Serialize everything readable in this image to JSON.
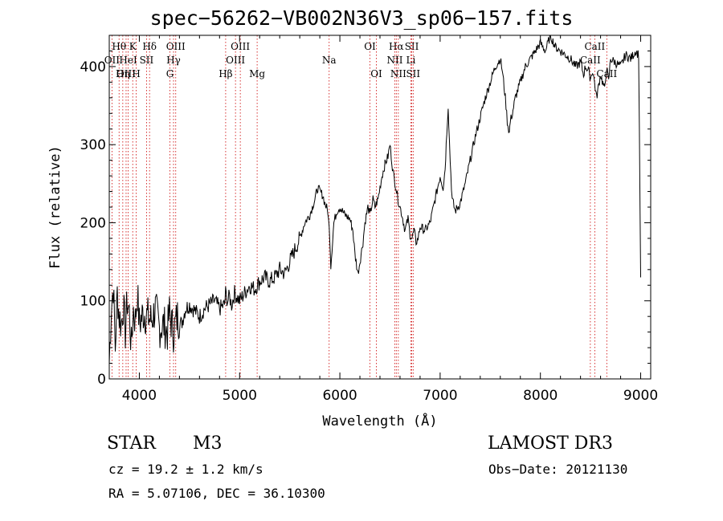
{
  "page": {
    "title": "spec−56262−VB002N36V3_sp06−157.fits",
    "object_class": "STAR",
    "subclass": "M3",
    "survey": "LAMOST DR3",
    "redshift_text": "cz = 19.2 ± 1.2 km/s",
    "obs_date_text": "Obs−Date: 20121130",
    "coords_text": "RA =   5.07106, DEC =  36.10300"
  },
  "chart_data": {
    "type": "line",
    "title": "spec−56262−VB002N36V3_sp06−157.fits",
    "xlabel": "Wavelength (Å)",
    "ylabel": "Flux (relative)",
    "xlim": [
      3700,
      9100
    ],
    "ylim": [
      0,
      440
    ],
    "xticks": [
      4000,
      5000,
      6000,
      7000,
      8000,
      9000
    ],
    "xtick_labels": [
      "4000",
      "5000",
      "6000",
      "7000",
      "8000",
      "9000"
    ],
    "yticks": [
      0,
      100,
      200,
      300,
      400
    ],
    "ytick_labels": [
      "0",
      "100",
      "200",
      "300",
      "400"
    ],
    "grid": false,
    "line_color": "#000000",
    "marker_line_color": "#cc0000",
    "series": [
      {
        "x": [
          3700,
          3720,
          3740,
          3760,
          3780,
          3800,
          3820,
          3840,
          3860,
          3880,
          3900,
          3920,
          3940,
          3960,
          3980,
          4000,
          4040,
          4080,
          4120,
          4160,
          4200,
          4240,
          4280,
          4300,
          4340,
          4380,
          4420,
          4460,
          4500,
          4550,
          4600,
          4650,
          4700,
          4750,
          4800,
          4850,
          4860,
          4880,
          4900,
          4920,
          4950,
          5000,
          5050,
          5100,
          5150,
          5200,
          5250,
          5300,
          5350,
          5400,
          5450,
          5500,
          5550,
          5600,
          5650,
          5700,
          5750,
          5780,
          5800,
          5830,
          5850,
          5880,
          5900,
          5910,
          5940,
          5970,
          6000,
          6050,
          6100,
          6130,
          6150,
          6180,
          6200,
          6230,
          6250,
          6280,
          6300,
          6330,
          6350,
          6380,
          6400,
          6420,
          6450,
          6480,
          6500,
          6530,
          6560,
          6580,
          6600,
          6620,
          6650,
          6680,
          6700,
          6720,
          6740,
          6760,
          6780,
          6800,
          6850,
          6900,
          6950,
          7000,
          7030,
          7050,
          7060,
          7080,
          7100,
          7120,
          7150,
          7200,
          7250,
          7300,
          7350,
          7400,
          7450,
          7500,
          7550,
          7600,
          7620,
          7650,
          7670,
          7690,
          7700,
          7720,
          7750,
          7800,
          7850,
          7900,
          7950,
          8000,
          8050,
          8100,
          8150,
          8200,
          8250,
          8300,
          8350,
          8400,
          8430,
          8450,
          8480,
          8500,
          8520,
          8540,
          8560,
          8600,
          8640,
          8660,
          8680,
          8700,
          8750,
          8800,
          8850,
          8900,
          8950,
          8980,
          9000
        ],
        "y": [
          20,
          90,
          120,
          40,
          110,
          80,
          70,
          95,
          60,
          100,
          85,
          40,
          90,
          75,
          110,
          70,
          85,
          80,
          75,
          90,
          65,
          70,
          60,
          85,
          60,
          80,
          70,
          90,
          95,
          88,
          80,
          90,
          95,
          100,
          90,
          95,
          110,
          100,
          105,
          95,
          110,
          100,
          110,
          120,
          115,
          125,
          130,
          125,
          130,
          140,
          135,
          150,
          165,
          180,
          200,
          210,
          230,
          245,
          240,
          235,
          225,
          215,
          180,
          145,
          200,
          215,
          220,
          210,
          205,
          190,
          160,
          135,
          150,
          175,
          200,
          220,
          210,
          230,
          220,
          230,
          245,
          260,
          275,
          285,
          300,
          265,
          245,
          230,
          220,
          210,
          190,
          205,
          185,
          180,
          190,
          175,
          180,
          195,
          190,
          200,
          230,
          260,
          245,
          270,
          300,
          350,
          280,
          230,
          215,
          225,
          250,
          280,
          310,
          335,
          360,
          380,
          400,
          410,
          395,
          360,
          330,
          315,
          330,
          340,
          360,
          380,
          400,
          410,
          420,
          430,
          420,
          440,
          425,
          420,
          415,
          410,
          400,
          405,
          390,
          400,
          395,
          385,
          395,
          380,
          360,
          390,
          370,
          400,
          380,
          410,
          405,
          400,
          415,
          410,
          420,
          415,
          130
        ]
      }
    ],
    "line_markers": [
      {
        "label": "Hθ",
        "wave": 3798,
        "row": 0
      },
      {
        "label": "OII",
        "wave": 3727,
        "row": 1
      },
      {
        "label": "OIII",
        "wave": 3868,
        "row": 2
      },
      {
        "label": "Hη",
        "wave": 3835,
        "row": 2
      },
      {
        "label": "HeI",
        "wave": 3889,
        "row": 1
      },
      {
        "label": "K",
        "wave": 3934,
        "row": 0
      },
      {
        "label": "SII",
        "wave": 4072,
        "row": 1
      },
      {
        "label": "H",
        "wave": 3969,
        "row": 2
      },
      {
        "label": "Hδ",
        "wave": 4102,
        "row": 0
      },
      {
        "label": "OIII",
        "wave": 4363,
        "row": 0
      },
      {
        "label": "Hγ",
        "wave": 4341,
        "row": 1
      },
      {
        "label": "G",
        "wave": 4305,
        "row": 2
      },
      {
        "label": "Hβ",
        "wave": 4861,
        "row": 2
      },
      {
        "label": "OIII",
        "wave": 5007,
        "row": 0
      },
      {
        "label": "OIII",
        "wave": 4959,
        "row": 1
      },
      {
        "label": "Mg",
        "wave": 5175,
        "row": 2
      },
      {
        "label": "Na",
        "wave": 5893,
        "row": 1
      },
      {
        "label": "OI",
        "wave": 6300,
        "row": 0
      },
      {
        "label": "OI",
        "wave": 6364,
        "row": 2
      },
      {
        "label": "Hα",
        "wave": 6563,
        "row": 0
      },
      {
        "label": "NII",
        "wave": 6548,
        "row": 1
      },
      {
        "label": "NII",
        "wave": 6583,
        "row": 2
      },
      {
        "label": "SII",
        "wave": 6717,
        "row": 0
      },
      {
        "label": "Li",
        "wave": 6708,
        "row": 1
      },
      {
        "label": "SII",
        "wave": 6731,
        "row": 2
      },
      {
        "label": "CaII",
        "wave": 8542,
        "row": 0
      },
      {
        "label": "CaII",
        "wave": 8498,
        "row": 1
      },
      {
        "label": "CaII",
        "wave": 8662,
        "row": 2
      }
    ]
  }
}
